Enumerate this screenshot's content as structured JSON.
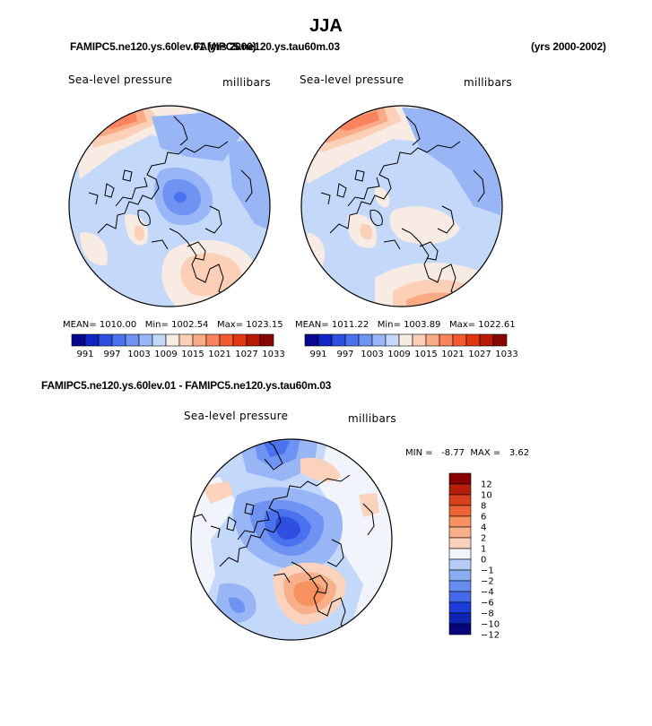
{
  "title": "JJA",
  "top_left_subtitle": "FAMIPC5.ne120.ys.60lev.01 (yrs 2000)",
  "top_right_subtitle": "FAMIPC5.ne120.ys.tau60m.03",
  "years_label": "(yrs 2000-2002)",
  "diff_subtitle": "FAMIPC5.ne120.ys.60lev.01 - FAMIPC5.ne120.ys.tau60m.03",
  "panels": [
    {
      "variable": "Sea-level pressure",
      "units": "millibars",
      "mean_label": "MEAN=",
      "mean": "1010.00",
      "min_label": "Min=",
      "min": "1002.54",
      "max_label": "Max=",
      "max": "1023.15"
    },
    {
      "variable": "Sea-level pressure",
      "units": "millibars",
      "mean_label": "MEAN=",
      "mean": "1011.22",
      "min_label": "Min=",
      "min": "1003.89",
      "max_label": "Max=",
      "max": "1022.61"
    }
  ],
  "diff_panel": {
    "variable": "Sea-level pressure",
    "units": "millibars",
    "min_label": "MIN =",
    "min": "-8.77",
    "max_label": "MAX =",
    "max": "3.62"
  },
  "abs_colorbar": {
    "colors": [
      "#08088e",
      "#0f26c4",
      "#2e4fe0",
      "#4a72ee",
      "#6e93f2",
      "#98b6f6",
      "#c4d9fa",
      "#f8ebe3",
      "#fcd0b6",
      "#fbaa86",
      "#f8835e",
      "#f35a32",
      "#e1360f",
      "#b71a04",
      "#870800"
    ],
    "labels": [
      "991",
      "997",
      "1003",
      "1009",
      "1015",
      "1021",
      "1027",
      "1033"
    ]
  },
  "diff_colorbar": {
    "colors": [
      "#880000",
      "#b51e0a",
      "#d6401c",
      "#ed6535",
      "#f7915f",
      "#f9b08a",
      "#fbd2bc",
      "#f1f4fa",
      "#b4ccf7",
      "#88aef2",
      "#668ef0",
      "#4469ea",
      "#1d3cdc",
      "#0e25b3",
      "#06067a"
    ],
    "labels": [
      "12",
      "10",
      "8",
      "6",
      "4",
      "2",
      "1",
      "0",
      "−1",
      "−2",
      "−4",
      "−6",
      "−8",
      "−10",
      "−12"
    ]
  }
}
